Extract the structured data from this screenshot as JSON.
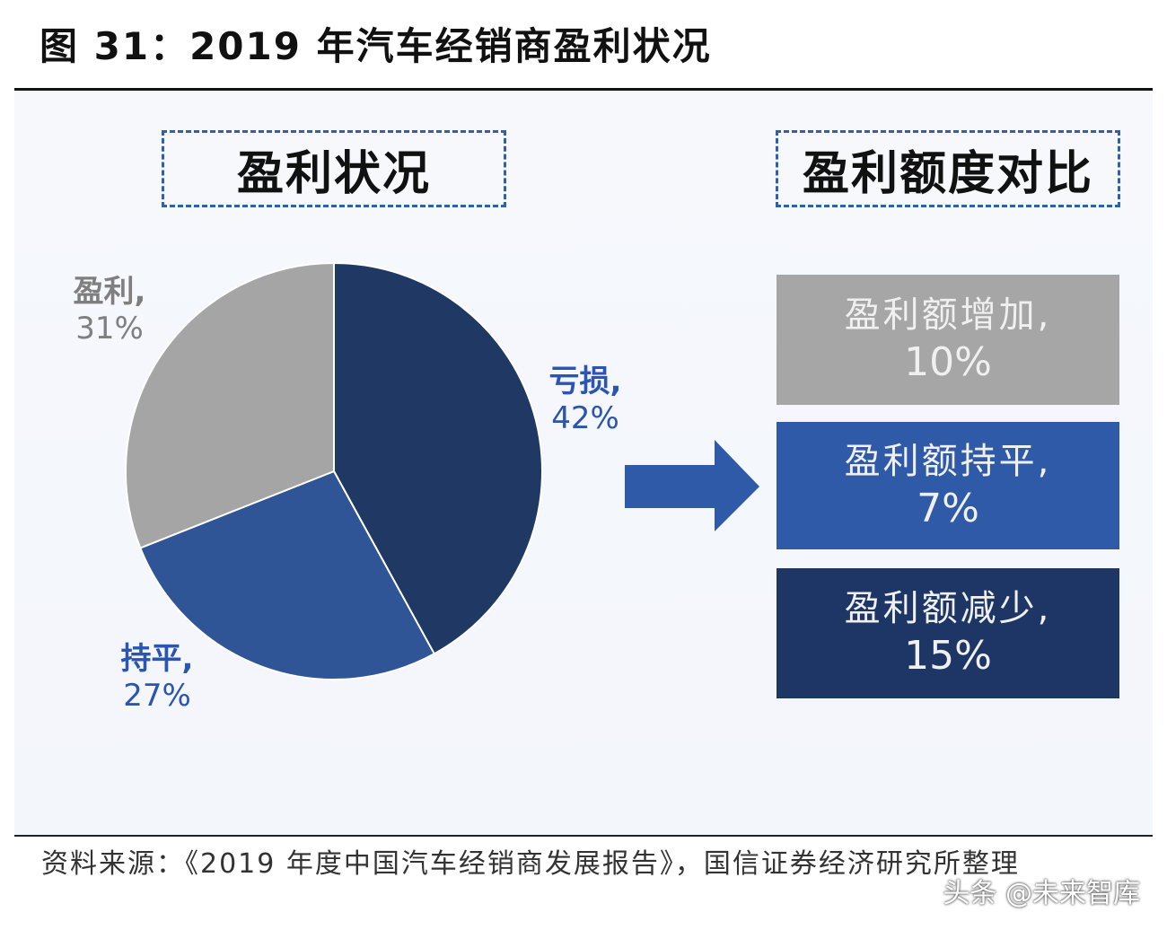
{
  "title": "图 31：2019 年汽车经销商盈利状况",
  "left_heading": "盈利状况",
  "right_heading": "盈利额度对比",
  "chart_data": [
    {
      "type": "pie",
      "title": "盈利状况",
      "slices": [
        {
          "label": "亏损",
          "value": 42,
          "display": "42%",
          "color": "#1f3864"
        },
        {
          "label": "持平",
          "value": 27,
          "display": "27%",
          "color": "#2f5597"
        },
        {
          "label": "盈利",
          "value": 31,
          "display": "31%",
          "color": "#a5a5a5"
        }
      ],
      "start_angle": "12 o'clock, clockwise"
    },
    {
      "type": "table",
      "title": "盈利额度对比",
      "rows": [
        {
          "label": "盈利额增加",
          "value": 10,
          "display": "10%",
          "color": "#a6a6a6"
        },
        {
          "label": "盈利额持平",
          "value": 7,
          "display": "7%",
          "color": "#2f5aa8"
        },
        {
          "label": "盈利额减少",
          "value": 15,
          "display": "15%",
          "color": "#1d3666"
        }
      ]
    }
  ],
  "labels": {
    "loss": {
      "name": "亏损,",
      "pct": "42%"
    },
    "flat": {
      "name": "持平,",
      "pct": "27%"
    },
    "profit": {
      "name": "盈利,",
      "pct": "31%"
    }
  },
  "bars": [
    {
      "name": "盈利额增加,",
      "value": "10%"
    },
    {
      "name": "盈利额持平,",
      "value": "7%"
    },
    {
      "name": "盈利额减少,",
      "value": "15%"
    }
  ],
  "source": "资料来源：《2019 年度中国汽车经销商发展报告》，国信证券经济研究所整理",
  "watermark": "头条 @未来智库"
}
